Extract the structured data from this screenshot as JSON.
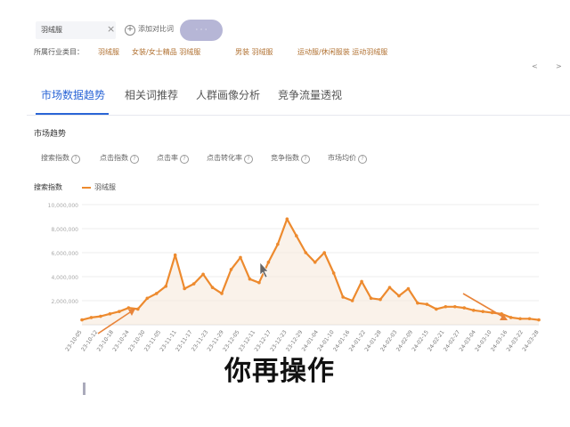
{
  "topbar": {
    "keyword": "羽绒服",
    "close": "×",
    "add_compare": "添加对比词",
    "pill": "· · ·"
  },
  "category": {
    "label": "所属行业类目：",
    "items": [
      "羽绒服",
      "女装/女士精品 羽绒服",
      "男装 羽绒服",
      "运动服/休闲服装 运动羽绒服"
    ]
  },
  "tabs": [
    "市场数据趋势",
    "相关词推荐",
    "人群画像分析",
    "竞争流量透视"
  ],
  "active_tab": 0,
  "section_title": "市场趋势",
  "metrics": [
    "搜索指数",
    "点击指数",
    "点击率",
    "点击转化率",
    "竞争指数",
    "市场均价"
  ],
  "legend": {
    "title": "搜索指数",
    "series": "羽绒服"
  },
  "overlay_text": "你再操作",
  "colors": {
    "series": "#ed8a2e",
    "active_tab": "#2a65d6",
    "arrow": "#e8843a"
  },
  "chart_data": {
    "type": "line",
    "series": [
      {
        "name": "羽绒服"
      }
    ],
    "ylim": [
      0,
      10000000
    ],
    "yticks": [
      "10,000,000",
      "8,000,000",
      "6,000,000",
      "4,000,000",
      "2,000,000"
    ],
    "xticks": [
      "23-10-05",
      "23-10-12",
      "23-10-18",
      "23-10-24",
      "23-10-30",
      "23-11-05",
      "23-11-11",
      "23-11-17",
      "23-11-23",
      "23-11-29",
      "23-12-05",
      "23-12-11",
      "23-12-17",
      "23-12-23",
      "23-12-29",
      "24-01-04",
      "24-01-10",
      "24-01-16",
      "24-01-22",
      "24-01-28",
      "24-02-03",
      "24-02-09",
      "24-02-15",
      "24-02-21",
      "24-02-27",
      "24-03-04",
      "24-03-10",
      "24-03-16",
      "24-03-22",
      "24-03-28"
    ],
    "values": [
      400000,
      600000,
      700000,
      900000,
      1100000,
      1400000,
      1300000,
      2200000,
      2600000,
      3200000,
      5800000,
      3000000,
      3400000,
      4200000,
      3100000,
      2600000,
      4600000,
      5600000,
      3800000,
      3500000,
      5200000,
      6700000,
      8800000,
      7400000,
      6000000,
      5200000,
      6000000,
      4300000,
      2300000,
      2000000,
      3600000,
      2200000,
      2100000,
      3100000,
      2400000,
      3000000,
      1800000,
      1700000,
      1300000,
      1500000,
      1500000,
      1400000,
      1200000,
      1100000,
      1000000,
      900000,
      600000,
      500000,
      500000,
      400000
    ],
    "grid": true
  }
}
